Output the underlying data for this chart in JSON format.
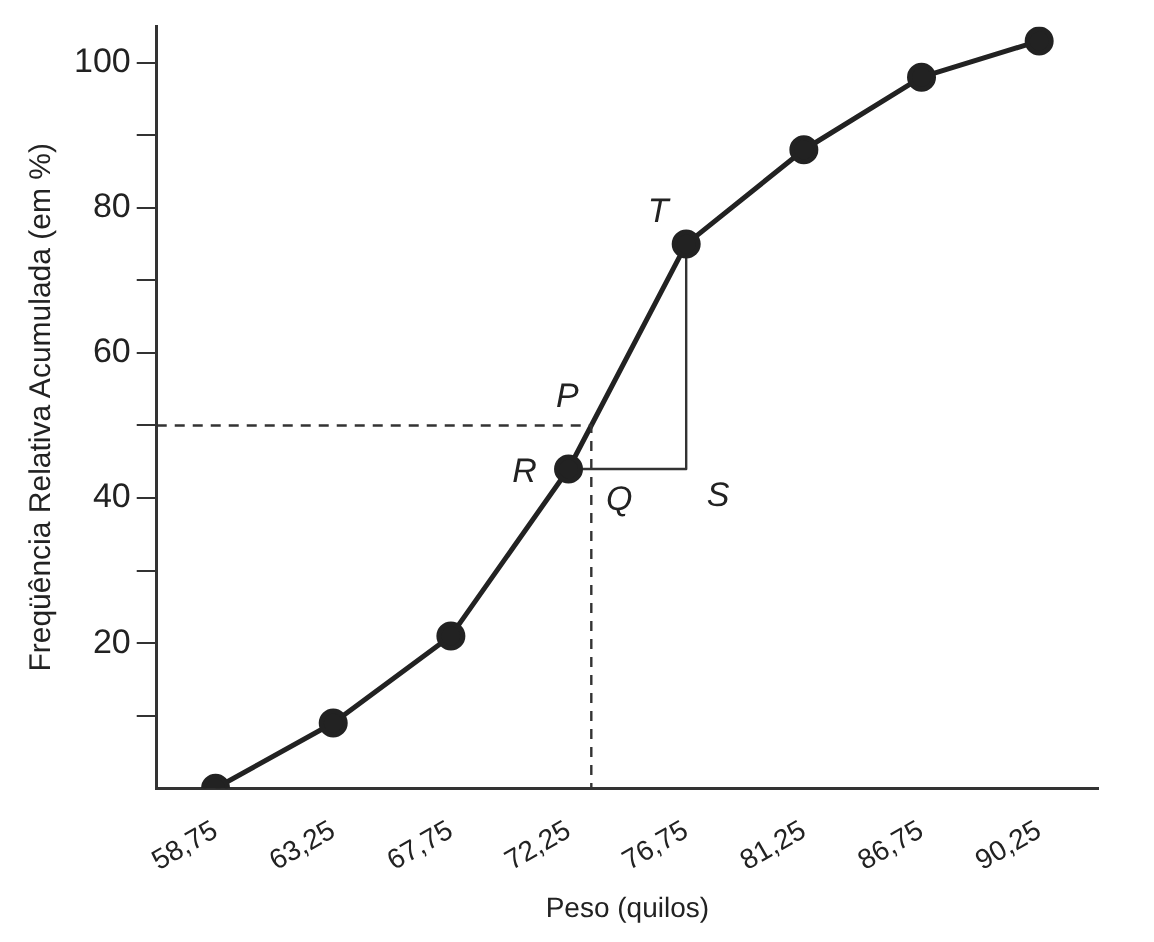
{
  "chart_data": {
    "type": "line",
    "xlabel": "Peso (quilos)",
    "ylabel": "Freqüência Relativa Acumulada (em %)",
    "categories": [
      "58,75",
      "63,25",
      "67,75",
      "72,25",
      "76,75",
      "81,25",
      "86,75",
      "90,25"
    ],
    "series": [
      {
        "color": "#222222",
        "values": [
          0,
          9,
          21,
          44,
          75,
          88,
          98,
          103
        ],
        "marker": "circle"
      },
      {
        "type": "line",
        "color": "#333333",
        "x": [
          "72,25",
          "76,75",
          "76,75"
        ],
        "values": [
          44,
          44,
          75
        ],
        "marker": "none"
      }
    ],
    "ylim": [
      0,
      105
    ],
    "yticks": [
      {
        "value": 10,
        "label": null
      },
      20,
      {
        "value": 30,
        "label": null
      },
      40,
      {
        "value": 50,
        "label": null
      },
      60,
      {
        "value": 70,
        "label": null
      },
      80,
      {
        "value": 90,
        "label": null
      },
      100
    ],
    "ref_lines": [
      {
        "axis": "y",
        "value": 50,
        "label": null,
        "line_style": "dashed",
        "color": "#333333"
      }
    ],
    "annotations": [
      {
        "text": "P",
        "y": 50
      },
      {
        "text": "Q",
        "y": 44
      },
      {
        "text": "R",
        "x": "72,25",
        "y": 44
      },
      {
        "text": "S",
        "x": "76,75",
        "y": 44
      },
      {
        "text": "T",
        "x": "76,75",
        "y": 75
      }
    ],
    "grid": false,
    "legend": false,
    "line_style": "solid"
  }
}
